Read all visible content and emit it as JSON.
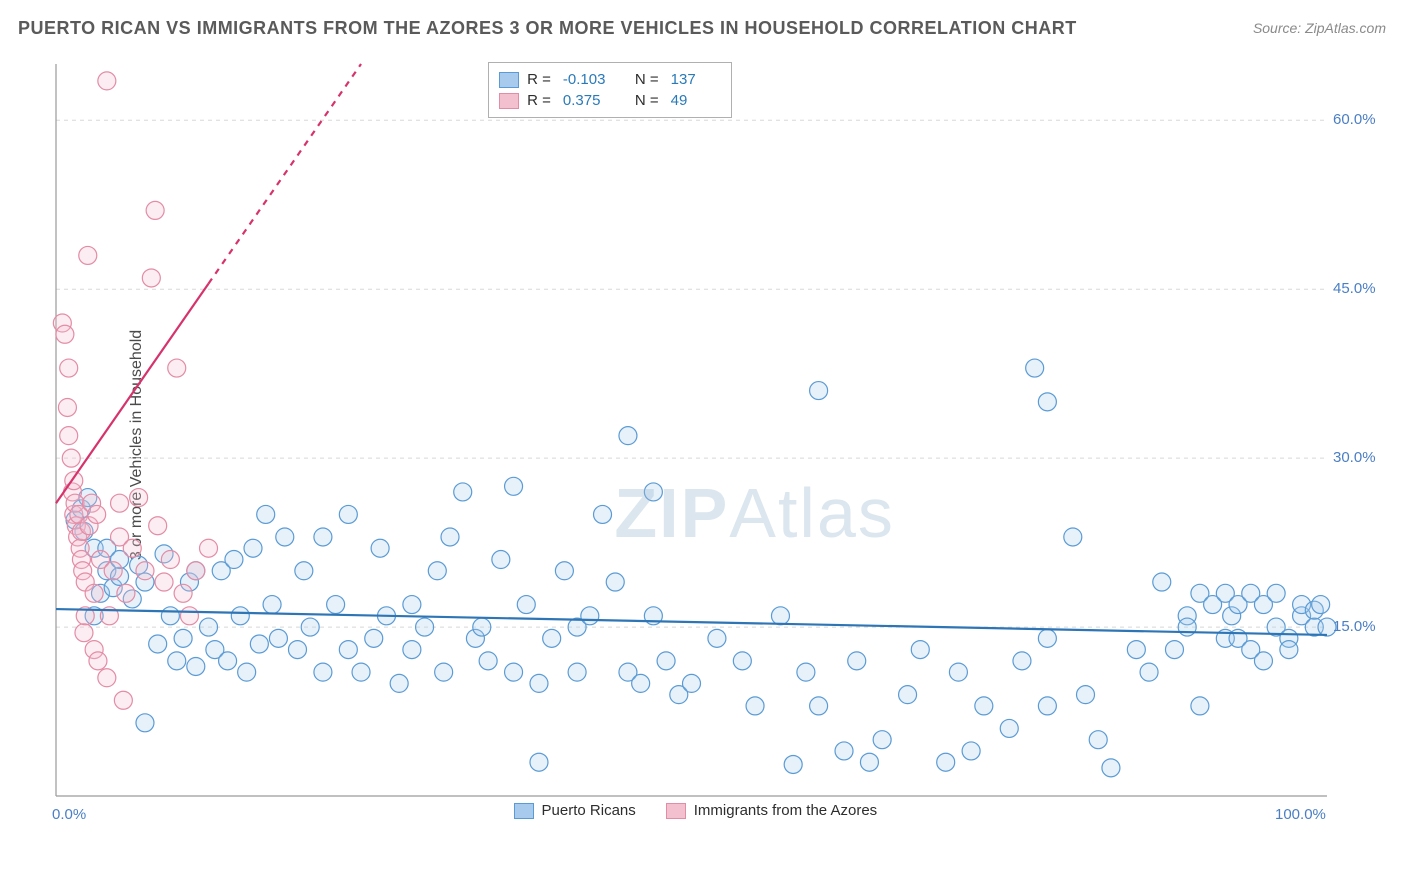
{
  "title": "PUERTO RICAN VS IMMIGRANTS FROM THE AZORES 3 OR MORE VEHICLES IN HOUSEHOLD CORRELATION CHART",
  "source": "Source: ZipAtlas.com",
  "ylabel": "3 or more Vehicles in Household",
  "watermark": {
    "bold": "ZIP",
    "rest": "Atlas"
  },
  "chart": {
    "type": "scatter",
    "xlim": [
      0,
      100
    ],
    "ylim": [
      0,
      65
    ],
    "x_ticks": [
      {
        "value": 0,
        "label": "0.0%"
      },
      {
        "value": 100,
        "label": "100.0%"
      }
    ],
    "y_ticks": [
      {
        "value": 15,
        "label": "15.0%"
      },
      {
        "value": 30,
        "label": "30.0%"
      },
      {
        "value": 45,
        "label": "45.0%"
      },
      {
        "value": 60,
        "label": "60.0%"
      }
    ],
    "grid_color": "#d8d8d8",
    "grid_dash": "4,4",
    "axis_color": "#9a9a9a",
    "background_color": "#ffffff",
    "marker_radius": 9,
    "marker_stroke_width": 1.2,
    "marker_fill_opacity": 0.28,
    "series": [
      {
        "name": "Puerto Ricans",
        "color_stroke": "#5b9bd5",
        "color_fill": "#a8cbed",
        "trend": {
          "x1": 0,
          "y1": 16.6,
          "x2": 100,
          "y2": 14.3,
          "color": "#2e75b6",
          "width": 2.2,
          "dash_after_x": null
        },
        "stats": {
          "R": "-0.103",
          "N": "137"
        },
        "points": [
          [
            1.5,
            24.5
          ],
          [
            2,
            25.5
          ],
          [
            2.2,
            23.5
          ],
          [
            2.5,
            26.5
          ],
          [
            3,
            22
          ],
          [
            3,
            16
          ],
          [
            3.5,
            18
          ],
          [
            4,
            22
          ],
          [
            4,
            20
          ],
          [
            4.5,
            18.5
          ],
          [
            5,
            19.5
          ],
          [
            5,
            21
          ],
          [
            6,
            17.5
          ],
          [
            6.5,
            20.5
          ],
          [
            7,
            19
          ],
          [
            7,
            6.5
          ],
          [
            8,
            13.5
          ],
          [
            8.5,
            21.5
          ],
          [
            9,
            16
          ],
          [
            9.5,
            12
          ],
          [
            10,
            14
          ],
          [
            10.5,
            19
          ],
          [
            11,
            11.5
          ],
          [
            11,
            20
          ],
          [
            12,
            15
          ],
          [
            12.5,
            13
          ],
          [
            13,
            20
          ],
          [
            13.5,
            12
          ],
          [
            14,
            21
          ],
          [
            14.5,
            16
          ],
          [
            15,
            11
          ],
          [
            15.5,
            22
          ],
          [
            16,
            13.5
          ],
          [
            16.5,
            25
          ],
          [
            17,
            17
          ],
          [
            17.5,
            14
          ],
          [
            18,
            23
          ],
          [
            19,
            13
          ],
          [
            19.5,
            20
          ],
          [
            20,
            15
          ],
          [
            21,
            23
          ],
          [
            21,
            11
          ],
          [
            22,
            17
          ],
          [
            23,
            13
          ],
          [
            23,
            25
          ],
          [
            24,
            11
          ],
          [
            25,
            14
          ],
          [
            25.5,
            22
          ],
          [
            26,
            16
          ],
          [
            27,
            10
          ],
          [
            28,
            13
          ],
          [
            28,
            17
          ],
          [
            29,
            15
          ],
          [
            30,
            20
          ],
          [
            30.5,
            11
          ],
          [
            31,
            23
          ],
          [
            32,
            27
          ],
          [
            33,
            14
          ],
          [
            33.5,
            15
          ],
          [
            34,
            12
          ],
          [
            35,
            21
          ],
          [
            36,
            27.5
          ],
          [
            36,
            11
          ],
          [
            37,
            17
          ],
          [
            38,
            10
          ],
          [
            38,
            3
          ],
          [
            39,
            14
          ],
          [
            40,
            20
          ],
          [
            41,
            11
          ],
          [
            41,
            15
          ],
          [
            42,
            16
          ],
          [
            43,
            25
          ],
          [
            44,
            19
          ],
          [
            45,
            11
          ],
          [
            45,
            32
          ],
          [
            46,
            10
          ],
          [
            47,
            16
          ],
          [
            47,
            27
          ],
          [
            48,
            12
          ],
          [
            49,
            9
          ],
          [
            50,
            10
          ],
          [
            52,
            14
          ],
          [
            54,
            12
          ],
          [
            55,
            8
          ],
          [
            57,
            16
          ],
          [
            58,
            2.8
          ],
          [
            59,
            11
          ],
          [
            60,
            36
          ],
          [
            60,
            8
          ],
          [
            62,
            4
          ],
          [
            63,
            12
          ],
          [
            64,
            3
          ],
          [
            65,
            5
          ],
          [
            67,
            9
          ],
          [
            68,
            13
          ],
          [
            70,
            3
          ],
          [
            71,
            11
          ],
          [
            72,
            4
          ],
          [
            73,
            8
          ],
          [
            75,
            6
          ],
          [
            76,
            12
          ],
          [
            77,
            38
          ],
          [
            78,
            14
          ],
          [
            78,
            8
          ],
          [
            78,
            35
          ],
          [
            80,
            23
          ],
          [
            81,
            9
          ],
          [
            82,
            5
          ],
          [
            83,
            2.5
          ],
          [
            85,
            13
          ],
          [
            86,
            11
          ],
          [
            87,
            19
          ],
          [
            88,
            13
          ],
          [
            89,
            16
          ],
          [
            89,
            15
          ],
          [
            90,
            18
          ],
          [
            90,
            8
          ],
          [
            91,
            17
          ],
          [
            92,
            14
          ],
          [
            92,
            18
          ],
          [
            92.5,
            16
          ],
          [
            93,
            14
          ],
          [
            93,
            17
          ],
          [
            94,
            13
          ],
          [
            94,
            18
          ],
          [
            95,
            12
          ],
          [
            95,
            17
          ],
          [
            96,
            15
          ],
          [
            96,
            18
          ],
          [
            97,
            14
          ],
          [
            97,
            13
          ],
          [
            98,
            16
          ],
          [
            98,
            17
          ],
          [
            99,
            15
          ],
          [
            99,
            16.5
          ],
          [
            99.5,
            17
          ],
          [
            100,
            15
          ]
        ]
      },
      {
        "name": "Immigrants from the Azores",
        "color_stroke": "#e38ca5",
        "color_fill": "#f3c0cf",
        "trend": {
          "x1": 0,
          "y1": 26,
          "x2": 24,
          "y2": 65,
          "color": "#d6336c",
          "width": 2.2,
          "dash_after_x": 12
        },
        "stats": {
          "R": "0.375",
          "N": "49"
        },
        "points": [
          [
            0.5,
            42
          ],
          [
            0.7,
            41
          ],
          [
            0.9,
            34.5
          ],
          [
            1,
            38
          ],
          [
            1,
            32
          ],
          [
            1.2,
            30
          ],
          [
            1.3,
            27
          ],
          [
            1.4,
            25
          ],
          [
            1.4,
            28
          ],
          [
            1.5,
            26
          ],
          [
            1.6,
            24
          ],
          [
            1.7,
            23
          ],
          [
            1.8,
            25
          ],
          [
            1.9,
            22
          ],
          [
            2,
            23.5
          ],
          [
            2,
            21
          ],
          [
            2.1,
            20
          ],
          [
            2.2,
            14.5
          ],
          [
            2.3,
            19
          ],
          [
            2.3,
            16
          ],
          [
            2.5,
            48
          ],
          [
            2.6,
            24
          ],
          [
            2.8,
            26
          ],
          [
            3,
            13
          ],
          [
            3,
            18
          ],
          [
            3.2,
            25
          ],
          [
            3.3,
            12
          ],
          [
            3.5,
            21
          ],
          [
            4,
            10.5
          ],
          [
            4,
            63.5
          ],
          [
            4.2,
            16
          ],
          [
            4.5,
            20
          ],
          [
            5,
            23
          ],
          [
            5,
            26
          ],
          [
            5.3,
            8.5
          ],
          [
            5.5,
            18
          ],
          [
            6,
            22
          ],
          [
            6.5,
            26.5
          ],
          [
            7,
            20
          ],
          [
            7.5,
            46
          ],
          [
            7.8,
            52
          ],
          [
            8,
            24
          ],
          [
            8.5,
            19
          ],
          [
            9,
            21
          ],
          [
            9.5,
            38
          ],
          [
            10,
            18
          ],
          [
            10.5,
            16
          ],
          [
            11,
            20
          ],
          [
            12,
            22
          ]
        ]
      }
    ]
  },
  "legend_top": {
    "rows": [
      {
        "swatch_fill": "#a8cbed",
        "swatch_stroke": "#5b9bd5",
        "R_label": "R =",
        "R_value": "-0.103",
        "N_label": "N =",
        "N_value": "137"
      },
      {
        "swatch_fill": "#f3c0cf",
        "swatch_stroke": "#e38ca5",
        "R_label": "R =",
        "R_value": "0.375",
        "N_label": "N =",
        "N_value": "49"
      }
    ]
  },
  "legend_bottom": {
    "items": [
      {
        "swatch_fill": "#a8cbed",
        "swatch_stroke": "#5b9bd5",
        "label": "Puerto Ricans"
      },
      {
        "swatch_fill": "#f3c0cf",
        "swatch_stroke": "#e38ca5",
        "label": "Immigrants from the Azores"
      }
    ]
  }
}
